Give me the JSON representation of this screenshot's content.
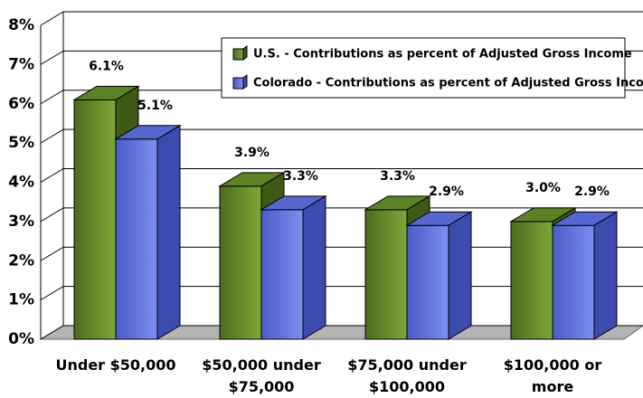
{
  "chart_data": {
    "type": "bar3d",
    "categories": [
      "Under $50,000",
      "$50,000 under $75,000",
      "$75,000 under $100,000",
      "$100,000 or more"
    ],
    "series": [
      {
        "name": "U.S. - Contributions as percent of Adjusted Gross Income",
        "color": "#6b8f2c",
        "values": [
          6.1,
          3.9,
          3.3,
          3.0
        ],
        "value_labels": [
          "6.1%",
          "3.9%",
          "3.3%",
          "3.0%"
        ]
      },
      {
        "name": "Colorado - Contributions as percent of Adjusted Gross Income",
        "color": "#6679de",
        "values": [
          5.1,
          3.3,
          2.9,
          2.9
        ],
        "value_labels": [
          "5.1%",
          "3.3%",
          "2.9%",
          "2.9%"
        ]
      }
    ],
    "ylim": [
      0,
      8
    ],
    "yticks": [
      {
        "value": 0,
        "label": "0%"
      },
      {
        "value": 1,
        "label": "1%"
      },
      {
        "value": 2,
        "label": "2%"
      },
      {
        "value": 3,
        "label": "3%"
      },
      {
        "value": 4,
        "label": "4%"
      },
      {
        "value": 5,
        "label": "5%"
      },
      {
        "value": 6,
        "label": "6%"
      },
      {
        "value": 7,
        "label": "7%"
      },
      {
        "value": 8,
        "label": "8%"
      }
    ],
    "grid": true,
    "legend": "top-right"
  }
}
